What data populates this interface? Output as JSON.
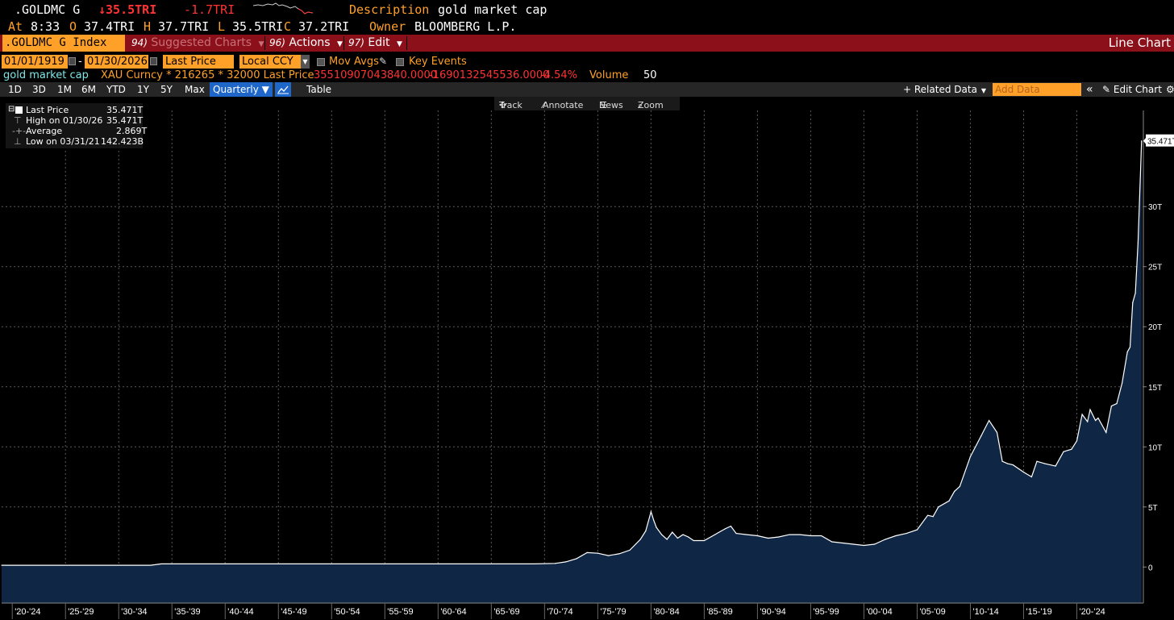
{
  "header": {
    "ticker": ".GOLDMC G",
    "price": "↓35.5TRI",
    "change": "-1.7TRI",
    "description_label": "Description",
    "description": "gold market cap",
    "at_label": "At",
    "time": "8:33",
    "open_label": "O",
    "open": "37.4TRI",
    "high_label": "H",
    "high": "37.7TRI",
    "low_label": "L",
    "low": "35.5TRI",
    "close_label": "C",
    "close": "37.2TRI",
    "owner_label": "Owner",
    "owner": "BLOOMBERG L.P."
  },
  "menu": {
    "security": ".GOLDMC G Index",
    "suggested_num": "94)",
    "suggested": "Suggested Charts",
    "actions_num": "96)",
    "actions": "Actions",
    "edit_num": "97)",
    "edit": "Edit",
    "view_title": "Line Chart"
  },
  "controls": {
    "start_date": "01/01/1919",
    "dash": "-",
    "end_date": "01/30/2026",
    "field": "Last Price",
    "currency": "Local CCY",
    "mov_avgs": "Mov Avgs",
    "key_events": "Key Events"
  },
  "info": {
    "series_name": "gold market cap",
    "formula": "XAU Curncy * 216265 * 32000 Last Price",
    "value": "35510907043840.0000",
    "change": "-1690132545536.0000",
    "pct": "-4.54%",
    "volume_label": "Volume",
    "volume": "50"
  },
  "toolbar": {
    "periods": [
      "1D",
      "3D",
      "1M",
      "6M",
      "YTD",
      "1Y",
      "5Y",
      "Max"
    ],
    "frequency": "Quarterly",
    "table": "Table",
    "related_data": "Related Data",
    "add_data_placeholder": "Add Data",
    "edit_chart": "Edit Chart"
  },
  "chart_tools": {
    "track": "Track",
    "annotate": "Annotate",
    "news": "News",
    "zoom": "Zoom"
  },
  "legend": {
    "rows": [
      {
        "label": "Last Price",
        "value": "35.471T"
      },
      {
        "label": "High on 01/30/26",
        "value": "35.471T"
      },
      {
        "label": "Average",
        "value": "2.869T"
      },
      {
        "label": "Low on 03/31/21",
        "value": "142.423B"
      }
    ]
  },
  "colors": {
    "background": "#000000",
    "orange": "#ffa028",
    "red": "#ff3333",
    "menubar": "#8c1019",
    "area_fill": "#0f2744",
    "line": "#ffffff",
    "grid": "#5a5a5a",
    "cyan": "#7fe6e6"
  },
  "chart_data": {
    "type": "area",
    "title": "",
    "xlabel": "",
    "ylabel": "",
    "y_unit": "T",
    "ylim": [
      -3,
      38
    ],
    "y_ticks": [
      0,
      5,
      10,
      15,
      20,
      25,
      30
    ],
    "y_tick_labels": [
      "0",
      "5T",
      "10T",
      "15T",
      "20T",
      "25T",
      "30T"
    ],
    "last_value_label": "35.471T",
    "x_tick_labels": [
      "'20-'24",
      "'25-'29",
      "'30-'34",
      "'35-'39",
      "'40-'44",
      "'45-'49",
      "'50-'54",
      "'55-'59",
      "'60-'64",
      "'65-'69",
      "'70-'74",
      "'75-'79",
      "'80-'84",
      "'85-'89",
      "'90-'94",
      "'95-'99",
      "'00-'04",
      "'05-'09",
      "'10-'14",
      "'15-'19",
      "'20-'24"
    ],
    "grid": true,
    "series": [
      {
        "name": "Last Price",
        "x": [
          1919.0,
          1933.0,
          1934.0,
          1969.0,
          1971.0,
          1972.0,
          1973.0,
          1974.0,
          1975.0,
          1976.0,
          1977.0,
          1978.0,
          1979.0,
          1979.5,
          1980.0,
          1980.25,
          1980.5,
          1981.0,
          1981.5,
          1982.0,
          1982.5,
          1983.0,
          1983.5,
          1984.0,
          1985.0,
          1986.0,
          1987.0,
          1987.5,
          1988.0,
          1989.0,
          1990.0,
          1991.0,
          1992.0,
          1993.0,
          1994.0,
          1995.0,
          1996.0,
          1997.0,
          1998.0,
          1999.0,
          2000.0,
          2001.0,
          2002.0,
          2003.0,
          2004.0,
          2005.0,
          2006.0,
          2006.5,
          2007.0,
          2008.0,
          2008.5,
          2009.0,
          2010.0,
          2011.0,
          2011.75,
          2012.5,
          2013.0,
          2013.5,
          2014.0,
          2015.0,
          2015.75,
          2016.25,
          2017.0,
          2018.0,
          2018.75,
          2019.5,
          2020.0,
          2020.5,
          2021.0,
          2021.25,
          2021.75,
          2022.0,
          2022.75,
          2023.25,
          2023.75,
          2024.25,
          2024.75,
          2025.0,
          2025.25,
          2025.5,
          2025.75,
          2026.08
        ],
        "y": [
          0.15,
          0.15,
          0.26,
          0.26,
          0.3,
          0.43,
          0.7,
          1.2,
          1.15,
          0.95,
          1.1,
          1.4,
          2.3,
          3.0,
          4.6,
          3.9,
          3.3,
          2.7,
          2.3,
          2.9,
          2.4,
          2.7,
          2.5,
          2.2,
          2.2,
          2.7,
          3.2,
          3.4,
          2.8,
          2.7,
          2.6,
          2.4,
          2.5,
          2.7,
          2.7,
          2.6,
          2.6,
          2.1,
          2.0,
          1.9,
          1.8,
          1.9,
          2.3,
          2.6,
          2.8,
          3.1,
          4.3,
          4.2,
          5.0,
          5.5,
          6.3,
          6.7,
          9.2,
          10.9,
          12.2,
          11.2,
          8.8,
          8.6,
          8.5,
          7.9,
          7.5,
          8.8,
          8.6,
          8.4,
          9.6,
          9.8,
          10.5,
          12.7,
          12.1,
          13.1,
          12.2,
          12.4,
          11.2,
          13.4,
          13.6,
          15.3,
          17.9,
          18.3,
          22.0,
          22.8,
          27.0,
          35.47
        ]
      }
    ]
  }
}
